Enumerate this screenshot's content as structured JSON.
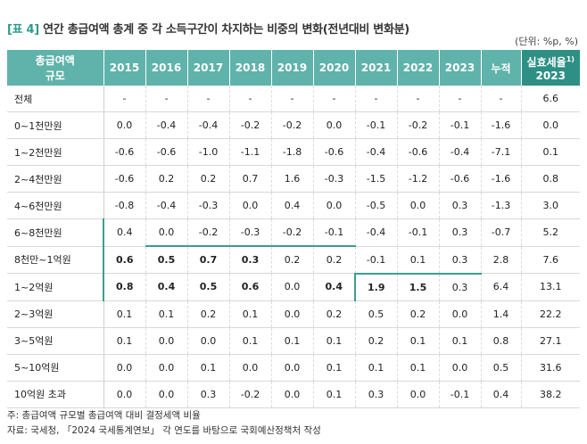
{
  "title_tag": "[표 4]",
  "title_text": " 연간 총급여액 총계 중 각 소득구간이 차지하는 비중의 변화(전년대비 변화분)",
  "unit": "(단위: %p, %)",
  "header": {
    "label_l1": "총급여액",
    "label_l2": "규모",
    "years": [
      "2015",
      "2016",
      "2017",
      "2018",
      "2019",
      "2020",
      "2021",
      "2022",
      "2023"
    ],
    "cumulative": "누적",
    "rate_l1": "실효세율",
    "rate_sup": "1)",
    "rate_l2": "2023"
  },
  "rows": [
    {
      "label": "전체",
      "values": [
        "-",
        "-",
        "-",
        "-",
        "-",
        "-",
        "-",
        "-",
        "-",
        "-",
        "6.6"
      ]
    },
    {
      "label": "0~1천만원",
      "values": [
        "0.0",
        "-0.4",
        "-0.4",
        "-0.2",
        "-0.2",
        "0.0",
        "-0.1",
        "-0.2",
        "-0.1",
        "-1.6",
        "0.0"
      ]
    },
    {
      "label": "1~2천만원",
      "values": [
        "-0.6",
        "-0.6",
        "-1.0",
        "-1.1",
        "-1.8",
        "-0.6",
        "-0.4",
        "-0.6",
        "-0.4",
        "-7.1",
        "0.1"
      ]
    },
    {
      "label": "2~4천만원",
      "values": [
        "-0.6",
        "0.2",
        "0.2",
        "0.7",
        "1.6",
        "-0.3",
        "-1.5",
        "-1.2",
        "-0.6",
        "-1.6",
        "0.8"
      ]
    },
    {
      "label": "4~6천만원",
      "values": [
        "-0.8",
        "-0.4",
        "-0.3",
        "0.0",
        "0.4",
        "0.0",
        "-0.5",
        "0.0",
        "0.3",
        "-1.3",
        "3.0"
      ]
    },
    {
      "label": "6~8천만원",
      "values": [
        "0.4",
        "0.0",
        "-0.2",
        "-0.3",
        "-0.2",
        "-0.1",
        "-0.4",
        "-0.1",
        "0.3",
        "-0.7",
        "5.2"
      ]
    },
    {
      "label": "8천만~1억원",
      "values": [
        "0.6",
        "0.5",
        "0.7",
        "0.3",
        "0.2",
        "0.2",
        "-0.1",
        "0.1",
        "0.3",
        "2.8",
        "7.6"
      ]
    },
    {
      "label": "1~2억원",
      "values": [
        "0.8",
        "0.4",
        "0.5",
        "0.6",
        "0.0",
        "0.4",
        "1.9",
        "1.5",
        "0.3",
        "6.4",
        "13.1"
      ]
    },
    {
      "label": "2~3억원",
      "values": [
        "0.1",
        "0.1",
        "0.2",
        "0.1",
        "0.0",
        "0.2",
        "0.5",
        "0.2",
        "0.0",
        "1.4",
        "22.2"
      ]
    },
    {
      "label": "3~5억원",
      "values": [
        "0.1",
        "0.0",
        "0.0",
        "0.1",
        "0.1",
        "0.1",
        "0.2",
        "0.1",
        "0.1",
        "0.8",
        "27.1"
      ]
    },
    {
      "label": "5~10억원",
      "values": [
        "0.0",
        "0.0",
        "0.1",
        "0.0",
        "0.0",
        "0.1",
        "0.1",
        "0.1",
        "0.0",
        "0.5",
        "31.6"
      ]
    },
    {
      "label": "10억원 초과",
      "values": [
        "0.0",
        "0.0",
        "0.3",
        "-0.2",
        "0.0",
        "0.1",
        "0.3",
        "0.0",
        "-0.1",
        "0.4",
        "38.2"
      ]
    }
  ],
  "footnote1": "주: 총급여액 규모별 총급여액 대비 결정세액 비율",
  "footnote2": "자료: 국세청, 「2024 국세통계연보」 각 연도를 바탕으로 국회예산정책처 작성"
}
